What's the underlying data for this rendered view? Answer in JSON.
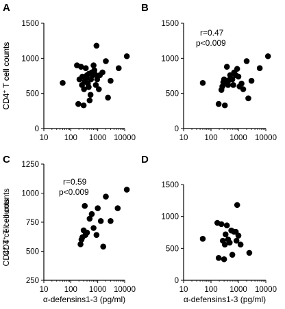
{
  "chart_data": [
    {
      "type": "scatter",
      "panel_label": "A",
      "xlabel": "",
      "ylabel": "CD4+ T cell counts",
      "xscale": "log",
      "xlim": [
        10,
        10000
      ],
      "ylim": [
        0,
        1500
      ],
      "xticks": [
        "10",
        "100",
        "1000",
        "10000"
      ],
      "yticks": [
        "0",
        "500",
        "1000",
        "1500"
      ],
      "annotations": [],
      "points": [
        [
          50,
          650
        ],
        [
          170,
          900
        ],
        [
          190,
          350
        ],
        [
          210,
          700
        ],
        [
          240,
          880
        ],
        [
          260,
          620
        ],
        [
          270,
          740
        ],
        [
          300,
          330
        ],
        [
          310,
          560
        ],
        [
          330,
          670
        ],
        [
          360,
          860
        ],
        [
          380,
          720
        ],
        [
          400,
          760
        ],
        [
          430,
          640
        ],
        [
          460,
          590
        ],
        [
          470,
          780
        ],
        [
          500,
          400
        ],
        [
          540,
          480
        ],
        [
          560,
          700
        ],
        [
          600,
          800
        ],
        [
          650,
          760
        ],
        [
          700,
          900
        ],
        [
          750,
          830
        ],
        [
          800,
          770
        ],
        [
          850,
          620
        ],
        [
          900,
          1180
        ],
        [
          950,
          700
        ],
        [
          1100,
          560
        ],
        [
          1200,
          760
        ],
        [
          1500,
          800
        ],
        [
          2000,
          960
        ],
        [
          2400,
          440
        ],
        [
          3000,
          680
        ],
        [
          6000,
          860
        ],
        [
          12000,
          1030
        ]
      ]
    },
    {
      "type": "scatter",
      "panel_label": "B",
      "xlabel": "",
      "ylabel": "CD4+ T cell counts",
      "xscale": "log",
      "xlim": [
        10,
        10000
      ],
      "ylim": [
        0,
        1500
      ],
      "xticks": [
        "10",
        "100",
        "1000",
        "10000"
      ],
      "yticks": [
        "0",
        "500",
        "1000",
        "1500"
      ],
      "annotations": [
        "r=0.47",
        "p<0.009"
      ],
      "points": [
        [
          50,
          650
        ],
        [
          190,
          350
        ],
        [
          240,
          550
        ],
        [
          260,
          600
        ],
        [
          280,
          660
        ],
        [
          300,
          700
        ],
        [
          320,
          330
        ],
        [
          340,
          650
        ],
        [
          380,
          880
        ],
        [
          420,
          620
        ],
        [
          450,
          690
        ],
        [
          500,
          760
        ],
        [
          600,
          700
        ],
        [
          650,
          620
        ],
        [
          700,
          800
        ],
        [
          800,
          760
        ],
        [
          900,
          850
        ],
        [
          1000,
          740
        ],
        [
          1100,
          600
        ],
        [
          1300,
          640
        ],
        [
          1500,
          560
        ],
        [
          2000,
          960
        ],
        [
          2300,
          430
        ],
        [
          3000,
          680
        ],
        [
          6000,
          860
        ],
        [
          12000,
          1030
        ]
      ]
    },
    {
      "type": "scatter",
      "panel_label": "C",
      "xlabel": "α-defensins1-3 (pg/ml)",
      "ylabel": "CD4+ T cell counts",
      "xscale": "log",
      "xlim": [
        10,
        10000
      ],
      "ylim": [
        250,
        1250
      ],
      "xticks": [
        "10",
        "100",
        "1000",
        "10000"
      ],
      "yticks": [
        "250",
        "500",
        "750",
        "1000",
        "1250"
      ],
      "annotations": [
        "r=0.59",
        "p<0.009"
      ],
      "points": [
        [
          230,
          560
        ],
        [
          250,
          600
        ],
        [
          270,
          620
        ],
        [
          300,
          680
        ],
        [
          330,
          890
        ],
        [
          350,
          640
        ],
        [
          400,
          660
        ],
        [
          500,
          780
        ],
        [
          600,
          820
        ],
        [
          700,
          700
        ],
        [
          900,
          640
        ],
        [
          1000,
          870
        ],
        [
          1300,
          760
        ],
        [
          1600,
          540
        ],
        [
          2000,
          970
        ],
        [
          3000,
          760
        ],
        [
          5500,
          870
        ],
        [
          12000,
          1030
        ]
      ]
    },
    {
      "type": "scatter",
      "panel_label": "D",
      "xlabel": "α-defensins1-3 (pg/ml)",
      "ylabel": "CD4+ T cell counts",
      "xscale": "log",
      "xlim": [
        10,
        10000
      ],
      "ylim": [
        0,
        1500
      ],
      "xticks": [
        "10",
        "100",
        "1000",
        "10000"
      ],
      "yticks": [
        "0",
        "500",
        "1000",
        "1500"
      ],
      "annotations": [],
      "points": [
        [
          50,
          650
        ],
        [
          170,
          900
        ],
        [
          190,
          350
        ],
        [
          240,
          880
        ],
        [
          270,
          620
        ],
        [
          300,
          330
        ],
        [
          320,
          560
        ],
        [
          340,
          720
        ],
        [
          380,
          860
        ],
        [
          420,
          640
        ],
        [
          480,
          590
        ],
        [
          550,
          780
        ],
        [
          600,
          400
        ],
        [
          700,
          760
        ],
        [
          800,
          760
        ],
        [
          850,
          620
        ],
        [
          900,
          1180
        ],
        [
          1000,
          700
        ],
        [
          1200,
          560
        ],
        [
          2500,
          430
        ]
      ]
    }
  ]
}
